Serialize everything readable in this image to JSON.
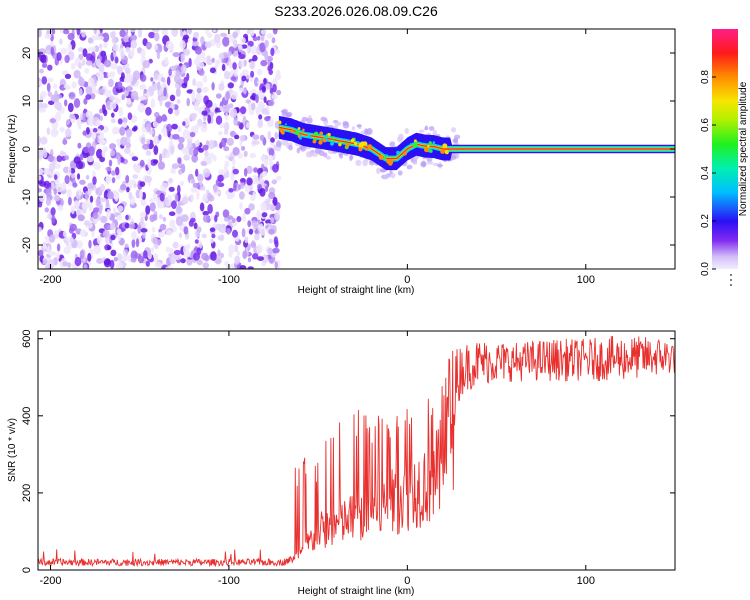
{
  "title": "S233.2026.026.08.09.C26",
  "chart_data": [
    {
      "type": "heatmap",
      "title": "S233.2026.026.08.09.C26",
      "xlabel": "Height of straight line (km)",
      "ylabel": "Frequency (Hz)",
      "xlim": [
        -207,
        150
      ],
      "ylim": [
        -25,
        25
      ],
      "x_ticks": [
        -200,
        -100,
        0,
        100
      ],
      "y_ticks": [
        -20,
        -10,
        0,
        10,
        20
      ],
      "noise_region_x": [
        -207,
        -72
      ],
      "signal_trace": {
        "x": [
          -72,
          -65,
          -58,
          -50,
          -42,
          -35,
          -28,
          -20,
          -12,
          -6,
          0,
          5,
          10,
          15,
          20,
          30,
          50,
          100,
          150
        ],
        "y": [
          4.5,
          4,
          3,
          2.5,
          2,
          1.5,
          1,
          0,
          -2,
          -2,
          0,
          1,
          0.6,
          0.5,
          0,
          0,
          0,
          0,
          0
        ]
      },
      "colorbar": {
        "label": "Normalized spectral amplitude",
        "range": [
          0,
          1
        ],
        "ticks": [
          0.0,
          0.2,
          0.4,
          0.6,
          0.8
        ],
        "tick_labels": [
          "0.0",
          "0.2",
          "0.4",
          "0.6",
          "0.8"
        ]
      }
    },
    {
      "type": "line",
      "xlabel": "Height of straight line (km)",
      "ylabel": "SNR (10 * v/v)",
      "xlim": [
        -207,
        150
      ],
      "ylim": [
        0,
        620
      ],
      "x_ticks": [
        -200,
        -100,
        0,
        100
      ],
      "y_ticks": [
        0,
        200,
        400,
        600
      ],
      "color": "#e8302e",
      "series_envelope": {
        "x": [
          -207,
          -70,
          -63,
          -50,
          -40,
          -30,
          -20,
          -10,
          0,
          10,
          18,
          25,
          30,
          40,
          60,
          80,
          100,
          120,
          150
        ],
        "mean": [
          20,
          20,
          30,
          110,
          130,
          150,
          170,
          190,
          220,
          250,
          280,
          450,
          520,
          540,
          540,
          545,
          545,
          550,
          555
        ],
        "max": [
          50,
          55,
          300,
          290,
          420,
          430,
          390,
          420,
          440,
          470,
          480,
          590,
          600,
          610,
          600,
          610,
          610,
          620,
          610
        ]
      }
    }
  ]
}
